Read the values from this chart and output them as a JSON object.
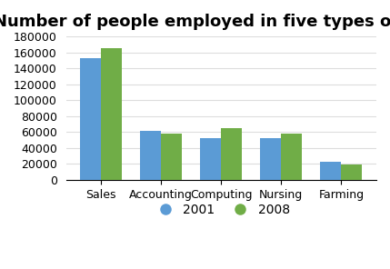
{
  "title": "Number of people employed in five types of work",
  "categories": [
    "Sales",
    "Accounting",
    "Computing",
    "Nursing",
    "Farming"
  ],
  "values_2001": [
    153000,
    61000,
    52000,
    52000,
    23000
  ],
  "values_2008": [
    165000,
    58000,
    65000,
    58000,
    19000
  ],
  "color_2001": "#5b9bd5",
  "color_2008": "#70ad47",
  "ylim": [
    0,
    180000
  ],
  "yticks": [
    0,
    20000,
    40000,
    60000,
    80000,
    100000,
    120000,
    140000,
    160000,
    180000
  ],
  "legend_labels": [
    "2001",
    "2008"
  ],
  "bar_width": 0.35,
  "background_color": "#ffffff",
  "grid_color": "#dddddd",
  "title_fontsize": 13,
  "tick_fontsize": 9,
  "legend_fontsize": 10
}
